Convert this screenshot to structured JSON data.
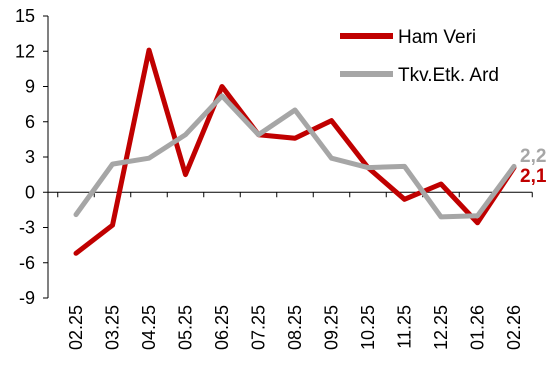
{
  "chart_data": {
    "type": "line",
    "categories": [
      "02.25",
      "03.25",
      "04.25",
      "05.25",
      "06.25",
      "07.25",
      "08.25",
      "09.25",
      "10.25",
      "11.25",
      "12.25",
      "01.26",
      "02.26"
    ],
    "ylim": [
      -9,
      15
    ],
    "yticks": [
      15,
      12,
      9,
      6,
      3,
      0,
      -3,
      -6,
      -9
    ],
    "grid": false,
    "legend_position": "top-right",
    "series": [
      {
        "name": "Ham Veri",
        "color": "#C00000",
        "values": [
          -5.2,
          -2.8,
          12.1,
          1.5,
          9.0,
          4.9,
          4.6,
          6.1,
          2.1,
          -0.6,
          0.7,
          -2.6,
          2.1
        ],
        "end_label": "2,1"
      },
      {
        "name": "Tkv.Etk. Ard",
        "color": "#A6A6A6",
        "values": [
          -1.9,
          2.4,
          2.9,
          4.9,
          8.2,
          4.9,
          7.0,
          2.9,
          2.1,
          2.2,
          -2.1,
          -2.0,
          2.2
        ],
        "end_label": "2,2"
      }
    ]
  }
}
